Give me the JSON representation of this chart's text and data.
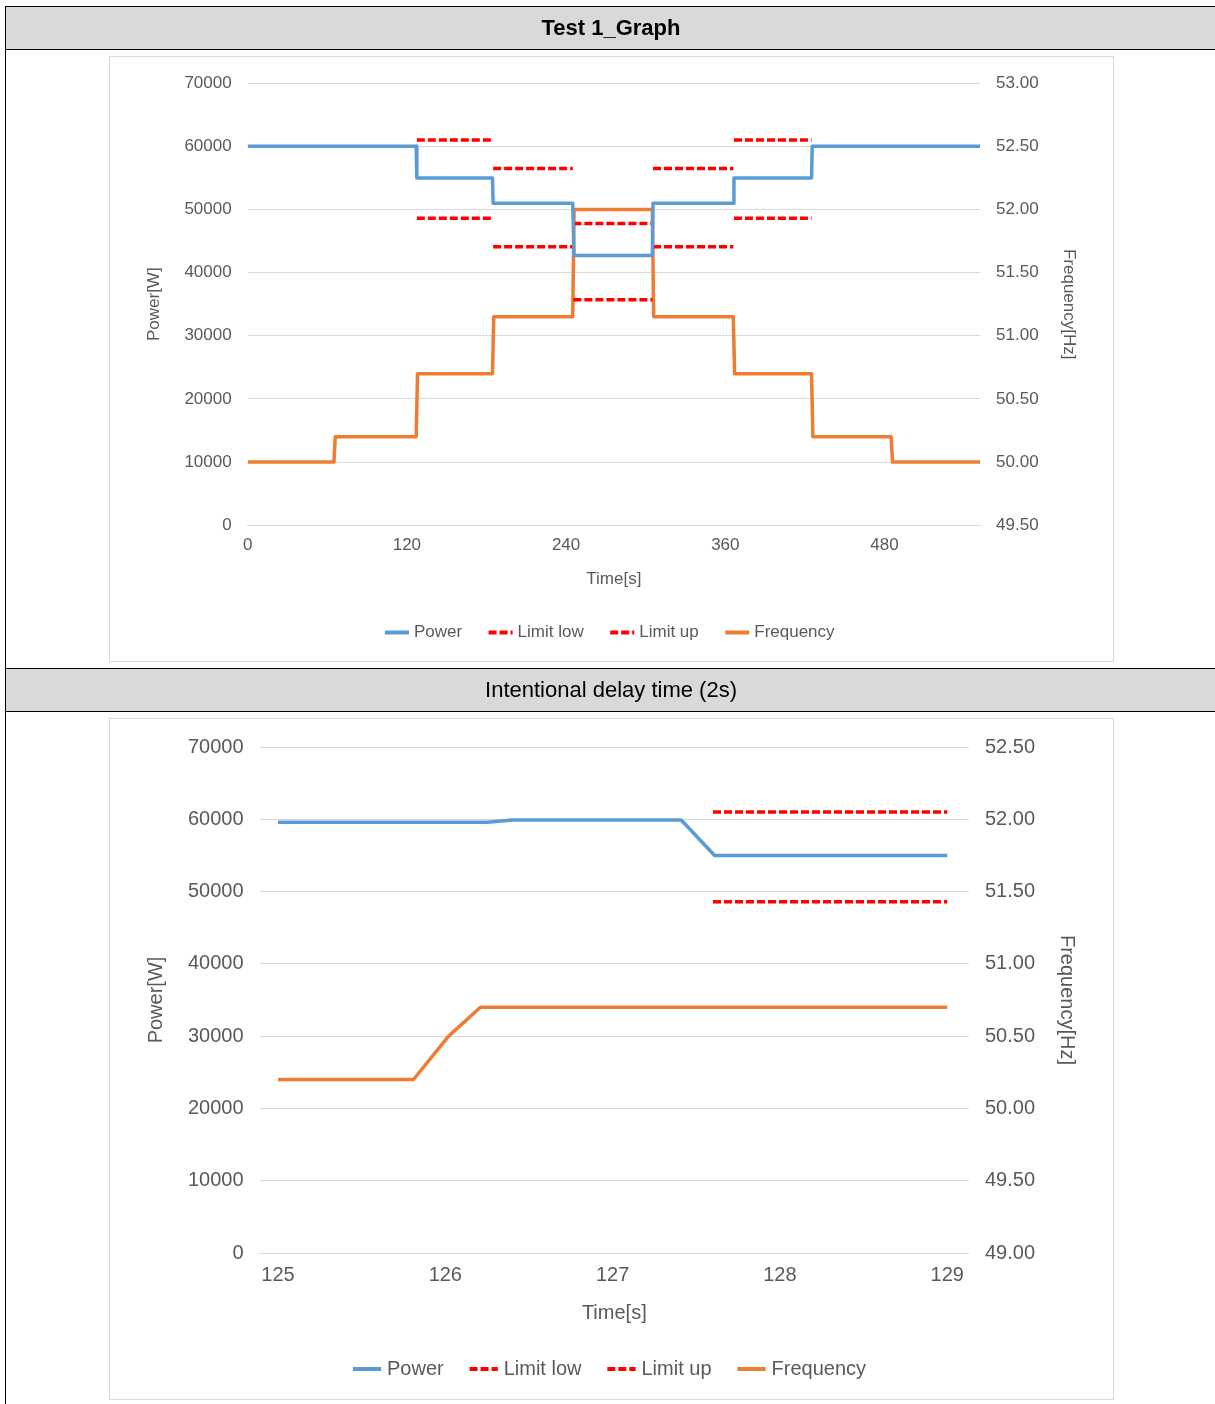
{
  "chart_data": [
    {
      "type": "line",
      "title": "Test 1_Graph",
      "xlabel": "Time[s]",
      "ylabel": "Power[W]",
      "y2label": "Frequency[Hz]",
      "xlim": [
        0,
        552
      ],
      "xticks": [
        0,
        120,
        240,
        360,
        480
      ],
      "ylim": [
        0,
        70000
      ],
      "yticks": [
        0,
        10000,
        20000,
        30000,
        40000,
        50000,
        60000,
        70000
      ],
      "y2lim": [
        49.5,
        53
      ],
      "y2ticks": [
        {
          "value": 49.5,
          "label": "49.50"
        },
        {
          "value": 50,
          "label": "50.00"
        },
        {
          "value": 50.5,
          "label": "50.50"
        },
        {
          "value": 51,
          "label": "51.00"
        },
        {
          "value": 51.5,
          "label": "51.50"
        },
        {
          "value": 52,
          "label": "52.00"
        },
        {
          "value": 52.5,
          "label": "52.50"
        },
        {
          "value": 53,
          "label": "53.00"
        }
      ],
      "grid": "y",
      "legend": "bottom",
      "marker": "none",
      "series": [
        {
          "name": "Power",
          "color": "#5b9bd5",
          "line_style": "solid",
          "x": [
            0,
            127,
            127.5,
            184.5,
            185,
            245,
            246,
            305,
            305.5,
            366,
            366.5,
            425,
            425.5,
            552
          ],
          "values": [
            60000,
            60000,
            55000,
            55000,
            51000,
            51000,
            42700,
            42700,
            51000,
            51000,
            55000,
            55000,
            60000,
            60000
          ]
        },
        {
          "name": "Limit low",
          "color": "#ff0000",
          "line_style": "dashed",
          "x": [
            127.5,
            184.5,
            184.7,
            185,
            245,
            245.2,
            245.5,
            305,
            305.2,
            305.5,
            366,
            366.2,
            366.5,
            425
          ],
          "values": [
            48600,
            48600,
            null,
            44100,
            44100,
            null,
            35700,
            35700,
            null,
            44100,
            44100,
            null,
            48600,
            48600
          ]
        },
        {
          "name": "Limit up",
          "color": "#ff0000",
          "line_style": "dashed",
          "x": [
            127.5,
            184.5,
            184.7,
            185,
            245,
            245.2,
            245.5,
            305,
            305.2,
            305.5,
            366,
            366.2,
            366.5,
            425
          ],
          "values": [
            61000,
            61000,
            null,
            56500,
            56500,
            null,
            47800,
            47800,
            null,
            56500,
            56500,
            null,
            61000,
            61000
          ]
        },
        {
          "name": "Frequency",
          "color": "#ed7d31",
          "line_style": "solid",
          "axis": "y2",
          "x": [
            0,
            65,
            66,
            127,
            128,
            184.5,
            185.5,
            245,
            246,
            305,
            306,
            366,
            367,
            425,
            426,
            485,
            486,
            552
          ],
          "values": [
            50,
            50,
            50.2,
            50.2,
            50.7,
            50.7,
            51.15,
            51.15,
            52,
            52,
            51.15,
            51.15,
            50.7,
            50.7,
            50.2,
            50.2,
            50,
            50
          ]
        }
      ]
    },
    {
      "type": "line",
      "title": "Intentional delay time (2s)",
      "xlabel": "Time[s]",
      "ylabel": "Power[W]",
      "y2label": "Frequency[Hz]",
      "xlim": [
        124.89,
        129.13
      ],
      "xticks": [
        125,
        126,
        127,
        128,
        129
      ],
      "ylim": [
        0,
        70000
      ],
      "yticks": [
        0,
        10000,
        20000,
        30000,
        40000,
        50000,
        60000,
        70000
      ],
      "y2lim": [
        49,
        52.5
      ],
      "y2ticks": [
        {
          "value": 49,
          "label": "49.00"
        },
        {
          "value": 49.5,
          "label": "49.50"
        },
        {
          "value": 50,
          "label": "50.00"
        },
        {
          "value": 50.5,
          "label": "50.50"
        },
        {
          "value": 51,
          "label": "51.00"
        },
        {
          "value": 51.5,
          "label": "51.50"
        },
        {
          "value": 52,
          "label": "52.00"
        },
        {
          "value": 52.5,
          "label": "52.50"
        }
      ],
      "grid": "y",
      "legend": "bottom",
      "marker": "none",
      "series": [
        {
          "name": "Power",
          "color": "#5b9bd5",
          "line_style": "solid",
          "x": [
            125,
            126.25,
            126.4,
            127.41,
            127.61,
            129
          ],
          "values": [
            59600,
            59600,
            59900,
            59900,
            55000,
            55000
          ]
        },
        {
          "name": "Limit low",
          "color": "#ff0000",
          "line_style": "dashed",
          "x": [
            127.6,
            129
          ],
          "values": [
            48600,
            48600
          ]
        },
        {
          "name": "Limit up",
          "color": "#ff0000",
          "line_style": "dashed",
          "x": [
            127.6,
            129
          ],
          "values": [
            61000,
            61000
          ]
        },
        {
          "name": "Frequency",
          "color": "#ed7d31",
          "line_style": "solid",
          "axis": "y2",
          "x": [
            125,
            125.81,
            126.02,
            126.21,
            129
          ],
          "values": [
            50.2,
            50.2,
            50.5,
            50.7,
            50.7
          ]
        }
      ]
    }
  ]
}
